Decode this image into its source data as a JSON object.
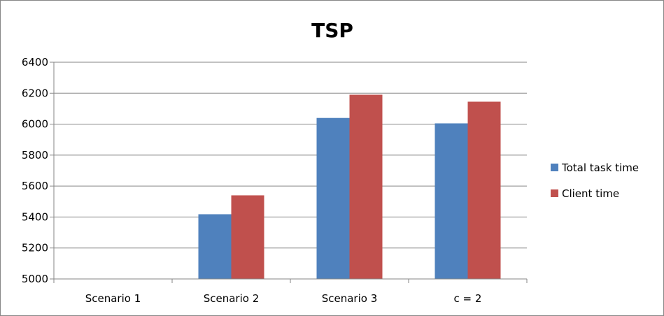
{
  "chart_data": {
    "type": "bar",
    "title": "TSP",
    "xlabel": "",
    "ylabel": "",
    "categories": [
      "Scenario 1",
      "Scenario 2",
      "Scenario 3",
      "c = 2"
    ],
    "series": [
      {
        "name": "Total task time",
        "color": "#4F81BD",
        "values": [
          null,
          5418,
          6040,
          6005
        ]
      },
      {
        "name": "Client time",
        "color": "#C0504D",
        "values": [
          null,
          5540,
          6190,
          6145
        ]
      }
    ],
    "ylim": [
      5000,
      6400
    ],
    "yticks": [
      5000,
      5200,
      5400,
      5600,
      5800,
      6000,
      6200,
      6400
    ],
    "grid": true,
    "legend": "right"
  }
}
